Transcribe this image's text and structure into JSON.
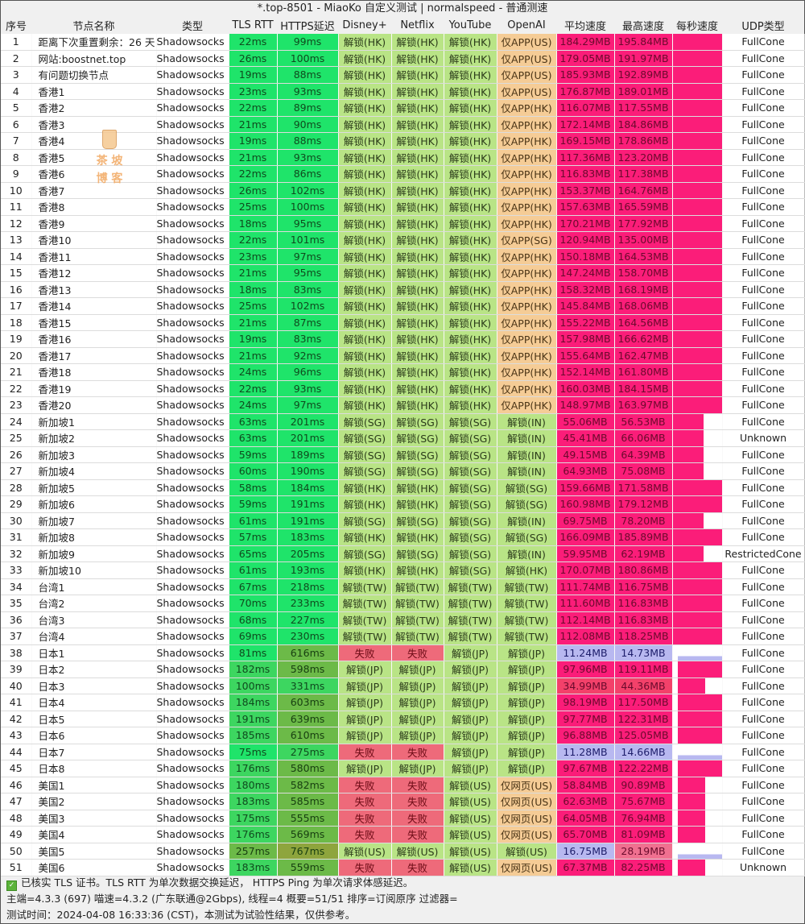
{
  "window": {
    "title": "*.top-8501 - MiaoKo 自定义测试 | normalspeed - 普通测速"
  },
  "table": {
    "columns": [
      "序号",
      "节点名称",
      "类型",
      "TLS RTT",
      "HTTPS延迟",
      "Disney+",
      "Netflix",
      "YouTube",
      "OpenAI",
      "平均速度",
      "最高速度",
      "每秒速度",
      "UDP类型"
    ],
    "rows": [
      [
        "1",
        "距离下次重置剩余：26 天",
        "Shadowsocks",
        "22ms",
        "99ms",
        "解锁(HK)",
        "解锁(HK)",
        "解锁(HK)",
        "仅APP(US)",
        "184.29MB",
        "195.84MB",
        "",
        "FullCone"
      ],
      [
        "2",
        "网站:boostnet.top",
        "Shadowsocks",
        "26ms",
        "100ms",
        "解锁(HK)",
        "解锁(HK)",
        "解锁(HK)",
        "仅APP(US)",
        "179.05MB",
        "191.97MB",
        "",
        "FullCone"
      ],
      [
        "3",
        "有问题切换节点",
        "Shadowsocks",
        "19ms",
        "88ms",
        "解锁(HK)",
        "解锁(HK)",
        "解锁(HK)",
        "仅APP(US)",
        "185.93MB",
        "192.89MB",
        "",
        "FullCone"
      ],
      [
        "4",
        "香港1",
        "Shadowsocks",
        "23ms",
        "93ms",
        "解锁(HK)",
        "解锁(HK)",
        "解锁(HK)",
        "仅APP(US)",
        "176.87MB",
        "189.01MB",
        "",
        "FullCone"
      ],
      [
        "5",
        "香港2",
        "Shadowsocks",
        "22ms",
        "89ms",
        "解锁(HK)",
        "解锁(HK)",
        "解锁(HK)",
        "仅APP(HK)",
        "116.07MB",
        "117.55MB",
        "",
        "FullCone"
      ],
      [
        "6",
        "香港3",
        "Shadowsocks",
        "21ms",
        "90ms",
        "解锁(HK)",
        "解锁(HK)",
        "解锁(HK)",
        "仅APP(HK)",
        "172.14MB",
        "184.86MB",
        "",
        "FullCone"
      ],
      [
        "7",
        "香港4",
        "Shadowsocks",
        "19ms",
        "88ms",
        "解锁(HK)",
        "解锁(HK)",
        "解锁(HK)",
        "仅APP(HK)",
        "169.15MB",
        "178.86MB",
        "",
        "FullCone"
      ],
      [
        "8",
        "香港5",
        "Shadowsocks",
        "21ms",
        "93ms",
        "解锁(HK)",
        "解锁(HK)",
        "解锁(HK)",
        "仅APP(HK)",
        "117.36MB",
        "123.20MB",
        "",
        "FullCone"
      ],
      [
        "9",
        "香港6",
        "Shadowsocks",
        "22ms",
        "86ms",
        "解锁(HK)",
        "解锁(HK)",
        "解锁(HK)",
        "仅APP(HK)",
        "116.83MB",
        "117.38MB",
        "",
        "FullCone"
      ],
      [
        "10",
        "香港7",
        "Shadowsocks",
        "26ms",
        "102ms",
        "解锁(HK)",
        "解锁(HK)",
        "解锁(HK)",
        "仅APP(HK)",
        "153.37MB",
        "164.76MB",
        "",
        "FullCone"
      ],
      [
        "11",
        "香港8",
        "Shadowsocks",
        "25ms",
        "100ms",
        "解锁(HK)",
        "解锁(HK)",
        "解锁(HK)",
        "仅APP(HK)",
        "157.63MB",
        "165.59MB",
        "",
        "FullCone"
      ],
      [
        "12",
        "香港9",
        "Shadowsocks",
        "18ms",
        "95ms",
        "解锁(HK)",
        "解锁(HK)",
        "解锁(HK)",
        "仅APP(HK)",
        "170.21MB",
        "177.92MB",
        "",
        "FullCone"
      ],
      [
        "13",
        "香港10",
        "Shadowsocks",
        "22ms",
        "101ms",
        "解锁(HK)",
        "解锁(HK)",
        "解锁(HK)",
        "仅APP(SG)",
        "120.94MB",
        "135.00MB",
        "",
        "FullCone"
      ],
      [
        "14",
        "香港11",
        "Shadowsocks",
        "23ms",
        "97ms",
        "解锁(HK)",
        "解锁(HK)",
        "解锁(HK)",
        "仅APP(HK)",
        "150.18MB",
        "164.53MB",
        "",
        "FullCone"
      ],
      [
        "15",
        "香港12",
        "Shadowsocks",
        "21ms",
        "95ms",
        "解锁(HK)",
        "解锁(HK)",
        "解锁(HK)",
        "仅APP(HK)",
        "147.24MB",
        "158.70MB",
        "",
        "FullCone"
      ],
      [
        "16",
        "香港13",
        "Shadowsocks",
        "18ms",
        "83ms",
        "解锁(HK)",
        "解锁(HK)",
        "解锁(HK)",
        "仅APP(HK)",
        "158.32MB",
        "168.19MB",
        "",
        "FullCone"
      ],
      [
        "17",
        "香港14",
        "Shadowsocks",
        "25ms",
        "102ms",
        "解锁(HK)",
        "解锁(HK)",
        "解锁(HK)",
        "仅APP(HK)",
        "145.84MB",
        "168.06MB",
        "",
        "FullCone"
      ],
      [
        "18",
        "香港15",
        "Shadowsocks",
        "21ms",
        "87ms",
        "解锁(HK)",
        "解锁(HK)",
        "解锁(HK)",
        "仅APP(HK)",
        "155.22MB",
        "164.56MB",
        "",
        "FullCone"
      ],
      [
        "19",
        "香港16",
        "Shadowsocks",
        "19ms",
        "83ms",
        "解锁(HK)",
        "解锁(HK)",
        "解锁(HK)",
        "仅APP(HK)",
        "157.98MB",
        "166.62MB",
        "",
        "FullCone"
      ],
      [
        "20",
        "香港17",
        "Shadowsocks",
        "21ms",
        "92ms",
        "解锁(HK)",
        "解锁(HK)",
        "解锁(HK)",
        "仅APP(HK)",
        "155.64MB",
        "162.47MB",
        "",
        "FullCone"
      ],
      [
        "21",
        "香港18",
        "Shadowsocks",
        "24ms",
        "96ms",
        "解锁(HK)",
        "解锁(HK)",
        "解锁(HK)",
        "仅APP(HK)",
        "152.14MB",
        "161.80MB",
        "",
        "FullCone"
      ],
      [
        "22",
        "香港19",
        "Shadowsocks",
        "22ms",
        "93ms",
        "解锁(HK)",
        "解锁(HK)",
        "解锁(HK)",
        "仅APP(HK)",
        "160.03MB",
        "184.15MB",
        "",
        "FullCone"
      ],
      [
        "23",
        "香港20",
        "Shadowsocks",
        "24ms",
        "97ms",
        "解锁(HK)",
        "解锁(HK)",
        "解锁(HK)",
        "仅APP(HK)",
        "148.97MB",
        "163.97MB",
        "",
        "FullCone"
      ],
      [
        "24",
        "新加坡1",
        "Shadowsocks",
        "63ms",
        "201ms",
        "解锁(SG)",
        "解锁(SG)",
        "解锁(SG)",
        "解锁(IN)",
        "55.06MB",
        "56.53MB",
        "",
        "FullCone"
      ],
      [
        "25",
        "新加坡2",
        "Shadowsocks",
        "63ms",
        "201ms",
        "解锁(SG)",
        "解锁(SG)",
        "解锁(SG)",
        "解锁(IN)",
        "45.41MB",
        "66.06MB",
        "",
        "Unknown"
      ],
      [
        "26",
        "新加坡3",
        "Shadowsocks",
        "59ms",
        "189ms",
        "解锁(SG)",
        "解锁(SG)",
        "解锁(SG)",
        "解锁(IN)",
        "49.15MB",
        "64.39MB",
        "",
        "FullCone"
      ],
      [
        "27",
        "新加坡4",
        "Shadowsocks",
        "60ms",
        "190ms",
        "解锁(SG)",
        "解锁(SG)",
        "解锁(SG)",
        "解锁(IN)",
        "64.93MB",
        "75.08MB",
        "",
        "FullCone"
      ],
      [
        "28",
        "新加坡5",
        "Shadowsocks",
        "58ms",
        "184ms",
        "解锁(HK)",
        "解锁(HK)",
        "解锁(SG)",
        "解锁(SG)",
        "159.66MB",
        "171.58MB",
        "",
        "FullCone"
      ],
      [
        "29",
        "新加坡6",
        "Shadowsocks",
        "59ms",
        "191ms",
        "解锁(HK)",
        "解锁(HK)",
        "解锁(SG)",
        "解锁(SG)",
        "160.98MB",
        "179.12MB",
        "",
        "FullCone"
      ],
      [
        "30",
        "新加坡7",
        "Shadowsocks",
        "61ms",
        "191ms",
        "解锁(SG)",
        "解锁(SG)",
        "解锁(SG)",
        "解锁(IN)",
        "69.75MB",
        "78.20MB",
        "",
        "FullCone"
      ],
      [
        "31",
        "新加坡8",
        "Shadowsocks",
        "57ms",
        "183ms",
        "解锁(HK)",
        "解锁(HK)",
        "解锁(SG)",
        "解锁(SG)",
        "166.09MB",
        "185.89MB",
        "",
        "FullCone"
      ],
      [
        "32",
        "新加坡9",
        "Shadowsocks",
        "65ms",
        "205ms",
        "解锁(SG)",
        "解锁(SG)",
        "解锁(SG)",
        "解锁(IN)",
        "59.95MB",
        "62.19MB",
        "",
        "RestrictedCone"
      ],
      [
        "33",
        "新加坡10",
        "Shadowsocks",
        "61ms",
        "193ms",
        "解锁(HK)",
        "解锁(HK)",
        "解锁(SG)",
        "解锁(HK)",
        "170.07MB",
        "180.86MB",
        "",
        "FullCone"
      ],
      [
        "34",
        "台湾1",
        "Shadowsocks",
        "67ms",
        "218ms",
        "解锁(TW)",
        "解锁(TW)",
        "解锁(TW)",
        "解锁(TW)",
        "111.74MB",
        "116.75MB",
        "",
        "FullCone"
      ],
      [
        "35",
        "台湾2",
        "Shadowsocks",
        "70ms",
        "233ms",
        "解锁(TW)",
        "解锁(TW)",
        "解锁(TW)",
        "解锁(TW)",
        "111.60MB",
        "116.83MB",
        "",
        "FullCone"
      ],
      [
        "36",
        "台湾3",
        "Shadowsocks",
        "68ms",
        "227ms",
        "解锁(TW)",
        "解锁(TW)",
        "解锁(TW)",
        "解锁(TW)",
        "112.14MB",
        "116.83MB",
        "",
        "FullCone"
      ],
      [
        "37",
        "台湾4",
        "Shadowsocks",
        "69ms",
        "230ms",
        "解锁(TW)",
        "解锁(TW)",
        "解锁(TW)",
        "解锁(TW)",
        "112.08MB",
        "118.25MB",
        "",
        "FullCone"
      ],
      [
        "38",
        "日本1",
        "Shadowsocks",
        "81ms",
        "616ms",
        "失败",
        "失败",
        "解锁(JP)",
        "解锁(JP)",
        "11.24MB",
        "14.73MB",
        "",
        "FullCone"
      ],
      [
        "39",
        "日本2",
        "Shadowsocks",
        "182ms",
        "598ms",
        "解锁(JP)",
        "解锁(JP)",
        "解锁(JP)",
        "解锁(JP)",
        "97.96MB",
        "119.11MB",
        "",
        "FullCone"
      ],
      [
        "40",
        "日本3",
        "Shadowsocks",
        "100ms",
        "331ms",
        "解锁(JP)",
        "解锁(JP)",
        "解锁(JP)",
        "解锁(JP)",
        "34.99MB",
        "44.36MB",
        "",
        "FullCone"
      ],
      [
        "41",
        "日本4",
        "Shadowsocks",
        "184ms",
        "603ms",
        "解锁(JP)",
        "解锁(JP)",
        "解锁(JP)",
        "解锁(JP)",
        "98.19MB",
        "117.50MB",
        "",
        "FullCone"
      ],
      [
        "42",
        "日本5",
        "Shadowsocks",
        "191ms",
        "639ms",
        "解锁(JP)",
        "解锁(JP)",
        "解锁(JP)",
        "解锁(JP)",
        "97.77MB",
        "122.31MB",
        "",
        "FullCone"
      ],
      [
        "43",
        "日本6",
        "Shadowsocks",
        "185ms",
        "610ms",
        "解锁(JP)",
        "解锁(JP)",
        "解锁(JP)",
        "解锁(JP)",
        "96.88MB",
        "125.05MB",
        "",
        "FullCone"
      ],
      [
        "44",
        "日本7",
        "Shadowsocks",
        "75ms",
        "275ms",
        "失败",
        "失败",
        "解锁(JP)",
        "解锁(JP)",
        "11.28MB",
        "14.66MB",
        "",
        "FullCone"
      ],
      [
        "45",
        "日本8",
        "Shadowsocks",
        "176ms",
        "580ms",
        "解锁(JP)",
        "解锁(JP)",
        "解锁(JP)",
        "解锁(JP)",
        "97.67MB",
        "122.22MB",
        "",
        "FullCone"
      ],
      [
        "46",
        "美国1",
        "Shadowsocks",
        "180ms",
        "582ms",
        "失败",
        "失败",
        "解锁(US)",
        "仅网页(US)",
        "58.84MB",
        "90.89MB",
        "",
        "FullCone"
      ],
      [
        "47",
        "美国2",
        "Shadowsocks",
        "183ms",
        "585ms",
        "失败",
        "失败",
        "解锁(US)",
        "仅网页(US)",
        "62.63MB",
        "75.67MB",
        "",
        "FullCone"
      ],
      [
        "48",
        "美国3",
        "Shadowsocks",
        "175ms",
        "555ms",
        "失败",
        "失败",
        "解锁(US)",
        "仅网页(US)",
        "64.05MB",
        "76.94MB",
        "",
        "FullCone"
      ],
      [
        "49",
        "美国4",
        "Shadowsocks",
        "176ms",
        "569ms",
        "失败",
        "失败",
        "解锁(US)",
        "仅网页(US)",
        "65.70MB",
        "81.09MB",
        "",
        "FullCone"
      ],
      [
        "50",
        "美国5",
        "Shadowsocks",
        "257ms",
        "767ms",
        "解锁(US)",
        "解锁(US)",
        "解锁(US)",
        "解锁(US)",
        "16.75MB",
        "28.19MB",
        "",
        "FullCone"
      ],
      [
        "51",
        "美国6",
        "Shadowsocks",
        "183ms",
        "559ms",
        "失败",
        "失败",
        "解锁(US)",
        "仅网页(US)",
        "67.37MB",
        "82.25MB",
        "",
        "Unknown"
      ]
    ]
  },
  "watermark": {
    "line1": "茶 坡",
    "line2": "博 客"
  },
  "footer": {
    "line1": "已核实 TLS 证书。TLS RTT 为单次数据交换延迟， HTTPS Ping 为单次请求体感延迟。",
    "line2": "主端=4.3.3 (697) 喵速=4.3.2 (广东联通@2Gbps), 线程=4 概要=51/51 排序=订阅原序 过滤器=",
    "line3": "测试时间：2024-04-08 16:33:36 (CST)，本测试为试验性结果，仅供参考。"
  },
  "colors": {
    "latency_good": "#1fe46a",
    "latency_slow": "#6cba48",
    "unlock": "#b9e486",
    "fail": "#ee6a7a",
    "app_only": "#f5cc96",
    "speed_high": "#fb1d79",
    "speed_low": "#b8b8f0"
  }
}
